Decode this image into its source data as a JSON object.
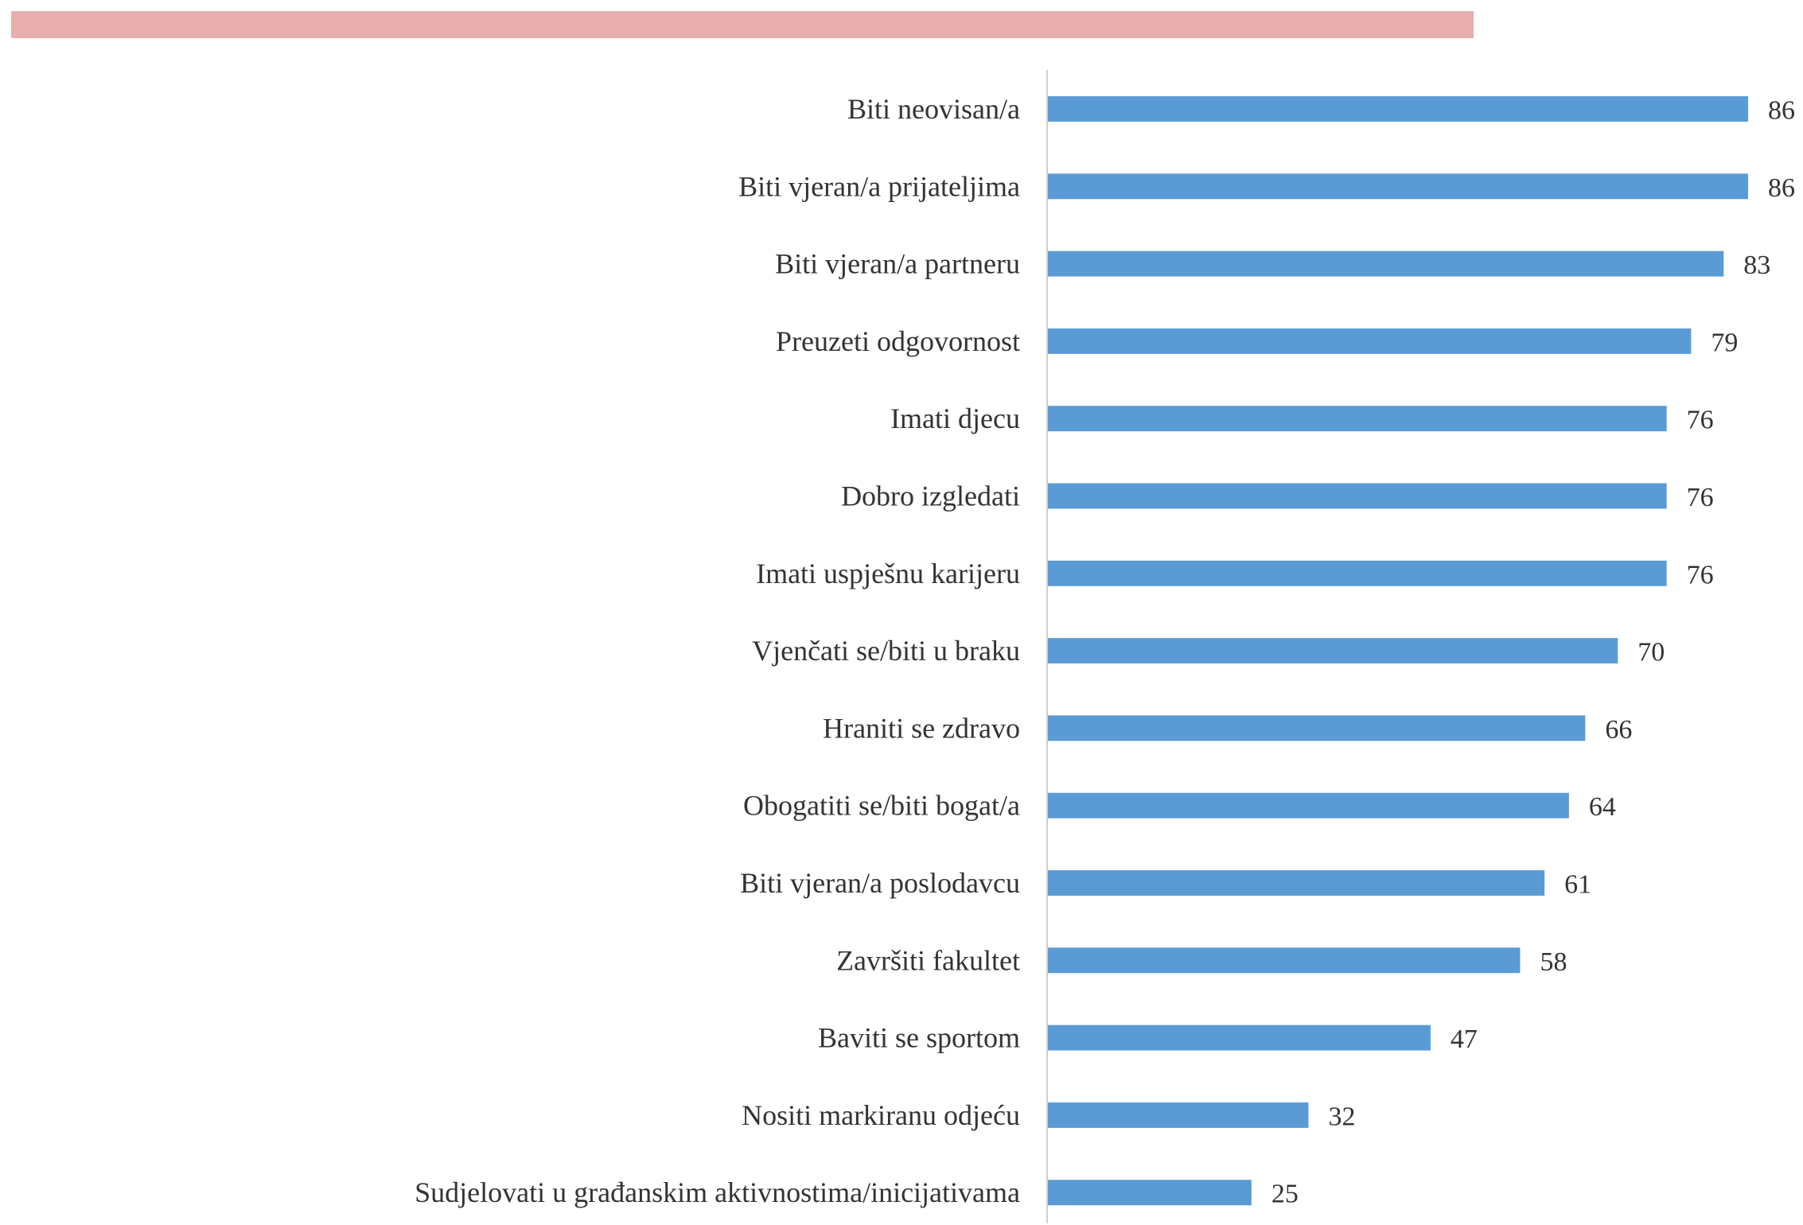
{
  "colors": {
    "top_band": "#e8aeae",
    "bar": "#5b9bd5",
    "axis": "#d0d0d0",
    "text": "#333333"
  },
  "chart_data": {
    "type": "bar",
    "orientation": "horizontal",
    "title": "",
    "xlabel": "",
    "ylabel": "",
    "xlim": [
      0,
      86
    ],
    "grid": false,
    "legend": "none",
    "data_labels": true,
    "categories": [
      "Biti neovisan/a",
      "Biti vjeran/a prijateljima",
      "Biti vjeran/a partneru",
      "Preuzeti odgovornost",
      "Imati djecu",
      "Dobro izgledati",
      "Imati uspješnu karijeru",
      "Vjenčati se/biti u braku",
      "Hraniti se zdravo",
      "Obogatiti se/biti bogat/a",
      "Biti vjeran/a poslodavcu",
      "Završiti fakultet",
      "Baviti se sportom",
      "Nositi markiranu odjeću",
      "Sudjelovati u građanskim aktivnostima/inicijativama"
    ],
    "values": [
      86,
      86,
      83,
      79,
      76,
      76,
      76,
      70,
      66,
      64,
      61,
      58,
      47,
      32,
      25
    ]
  }
}
